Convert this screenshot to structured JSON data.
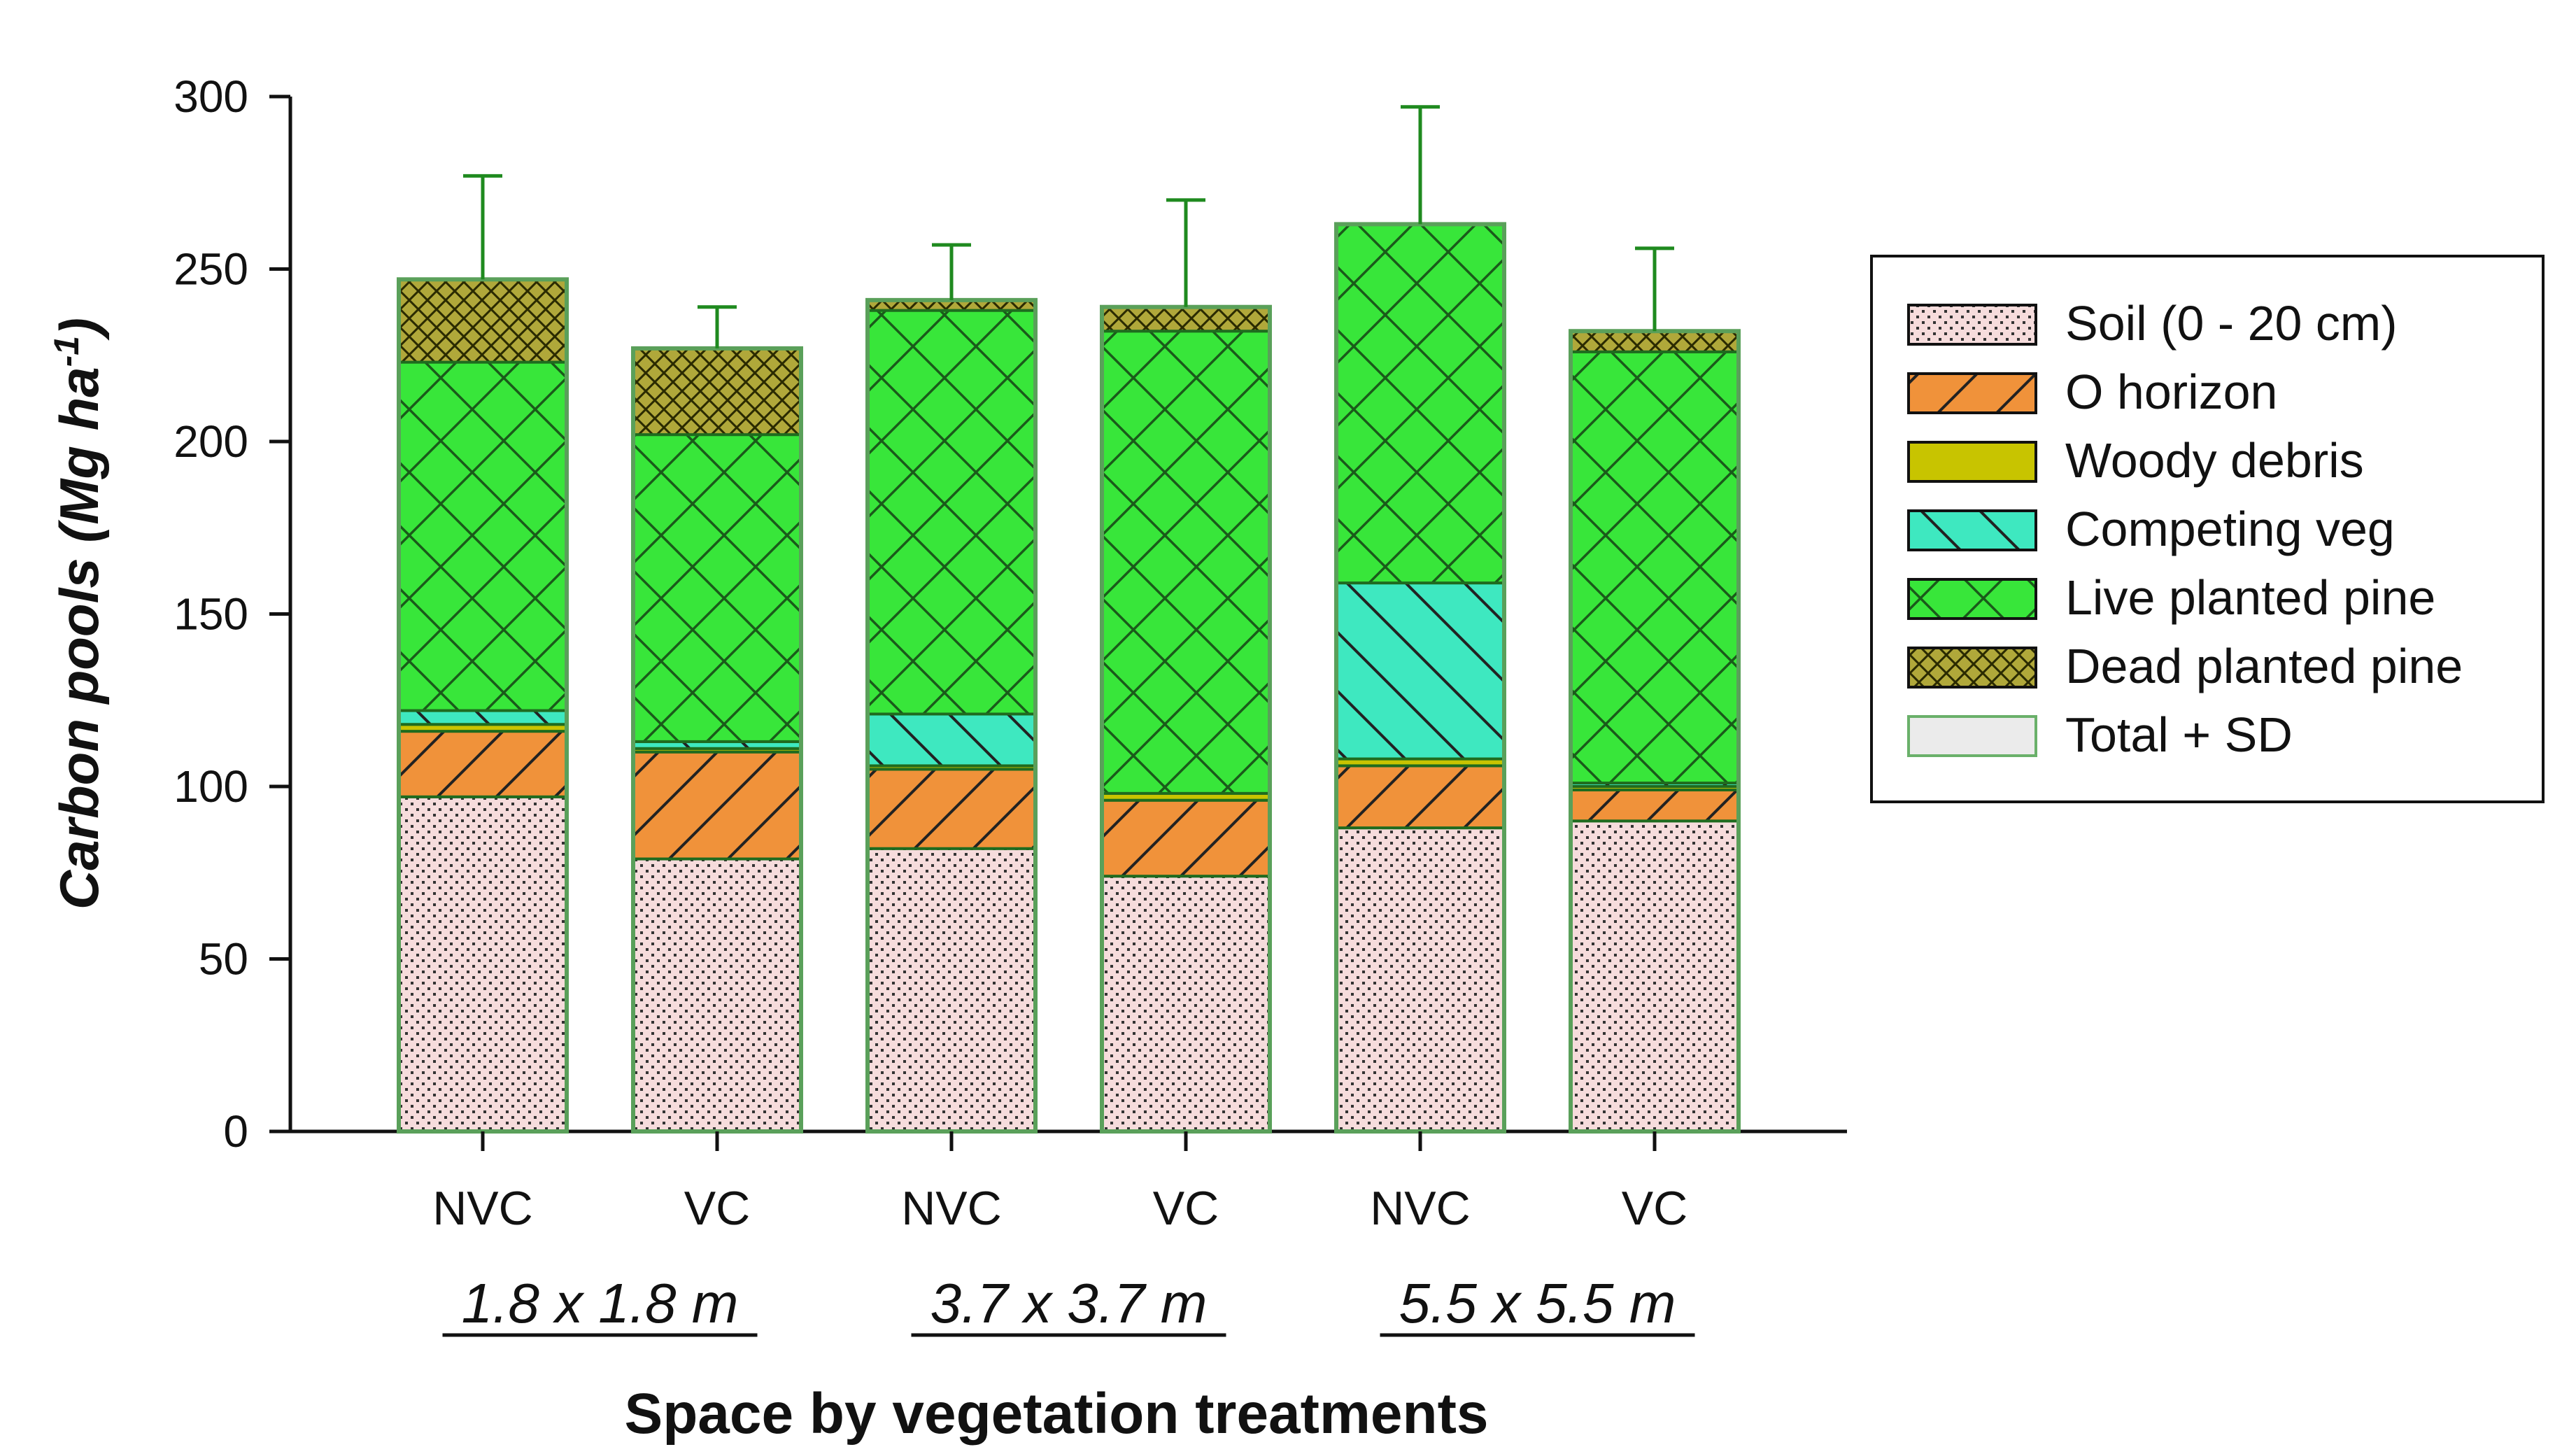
{
  "chart_data": {
    "type": "bar",
    "stacked": true,
    "title": "",
    "xlabel": "Space by vegetation treatments",
    "ylabel": "Carbon pools (Mg ha",
    "ylabel_sup": "-1",
    "ylabel_close": ")",
    "ylim": [
      0,
      300
    ],
    "yticks": [
      0,
      50,
      100,
      150,
      200,
      250,
      300
    ],
    "categories": [
      "NVC",
      "VC",
      "NVC",
      "VC",
      "NVC",
      "VC"
    ],
    "groups": [
      {
        "label": "1.8 x 1.8 m",
        "categories": [
          0,
          1
        ]
      },
      {
        "label": "3.7 x 3.7 m",
        "categories": [
          2,
          3
        ]
      },
      {
        "label": "5.5 x 5.5 m",
        "categories": [
          4,
          5
        ]
      }
    ],
    "series": [
      {
        "name": "Soil (0 - 20 cm)",
        "color": "#f6dcdc",
        "pattern": "dots",
        "values": [
          97,
          79,
          82,
          74,
          88,
          90
        ]
      },
      {
        "name": "O horizon",
        "color": "#f0923a",
        "pattern": "diag-up",
        "values": [
          19,
          31,
          23,
          22,
          18,
          9
        ]
      },
      {
        "name": "Woody debris",
        "color": "#c8c400",
        "pattern": "none",
        "values": [
          2,
          1,
          1,
          2,
          2,
          1
        ]
      },
      {
        "name": "Competing veg",
        "color": "#3ee8c0",
        "pattern": "diag-down",
        "values": [
          4,
          2,
          15,
          0,
          51,
          1
        ]
      },
      {
        "name": "Live planted pine",
        "color": "#38e63a",
        "pattern": "cross",
        "values": [
          101,
          89,
          117,
          134,
          104,
          125
        ]
      },
      {
        "name": "Dead planted pine",
        "color": "#b0a83a",
        "pattern": "dense-cross",
        "values": [
          24,
          25,
          3,
          7,
          0,
          6
        ]
      }
    ],
    "total_series": {
      "name": "Total + SD",
      "totals": [
        247,
        227,
        241,
        239,
        263,
        232
      ],
      "sd": [
        30,
        12,
        16,
        31,
        34,
        24
      ]
    },
    "legend_position": "right"
  }
}
